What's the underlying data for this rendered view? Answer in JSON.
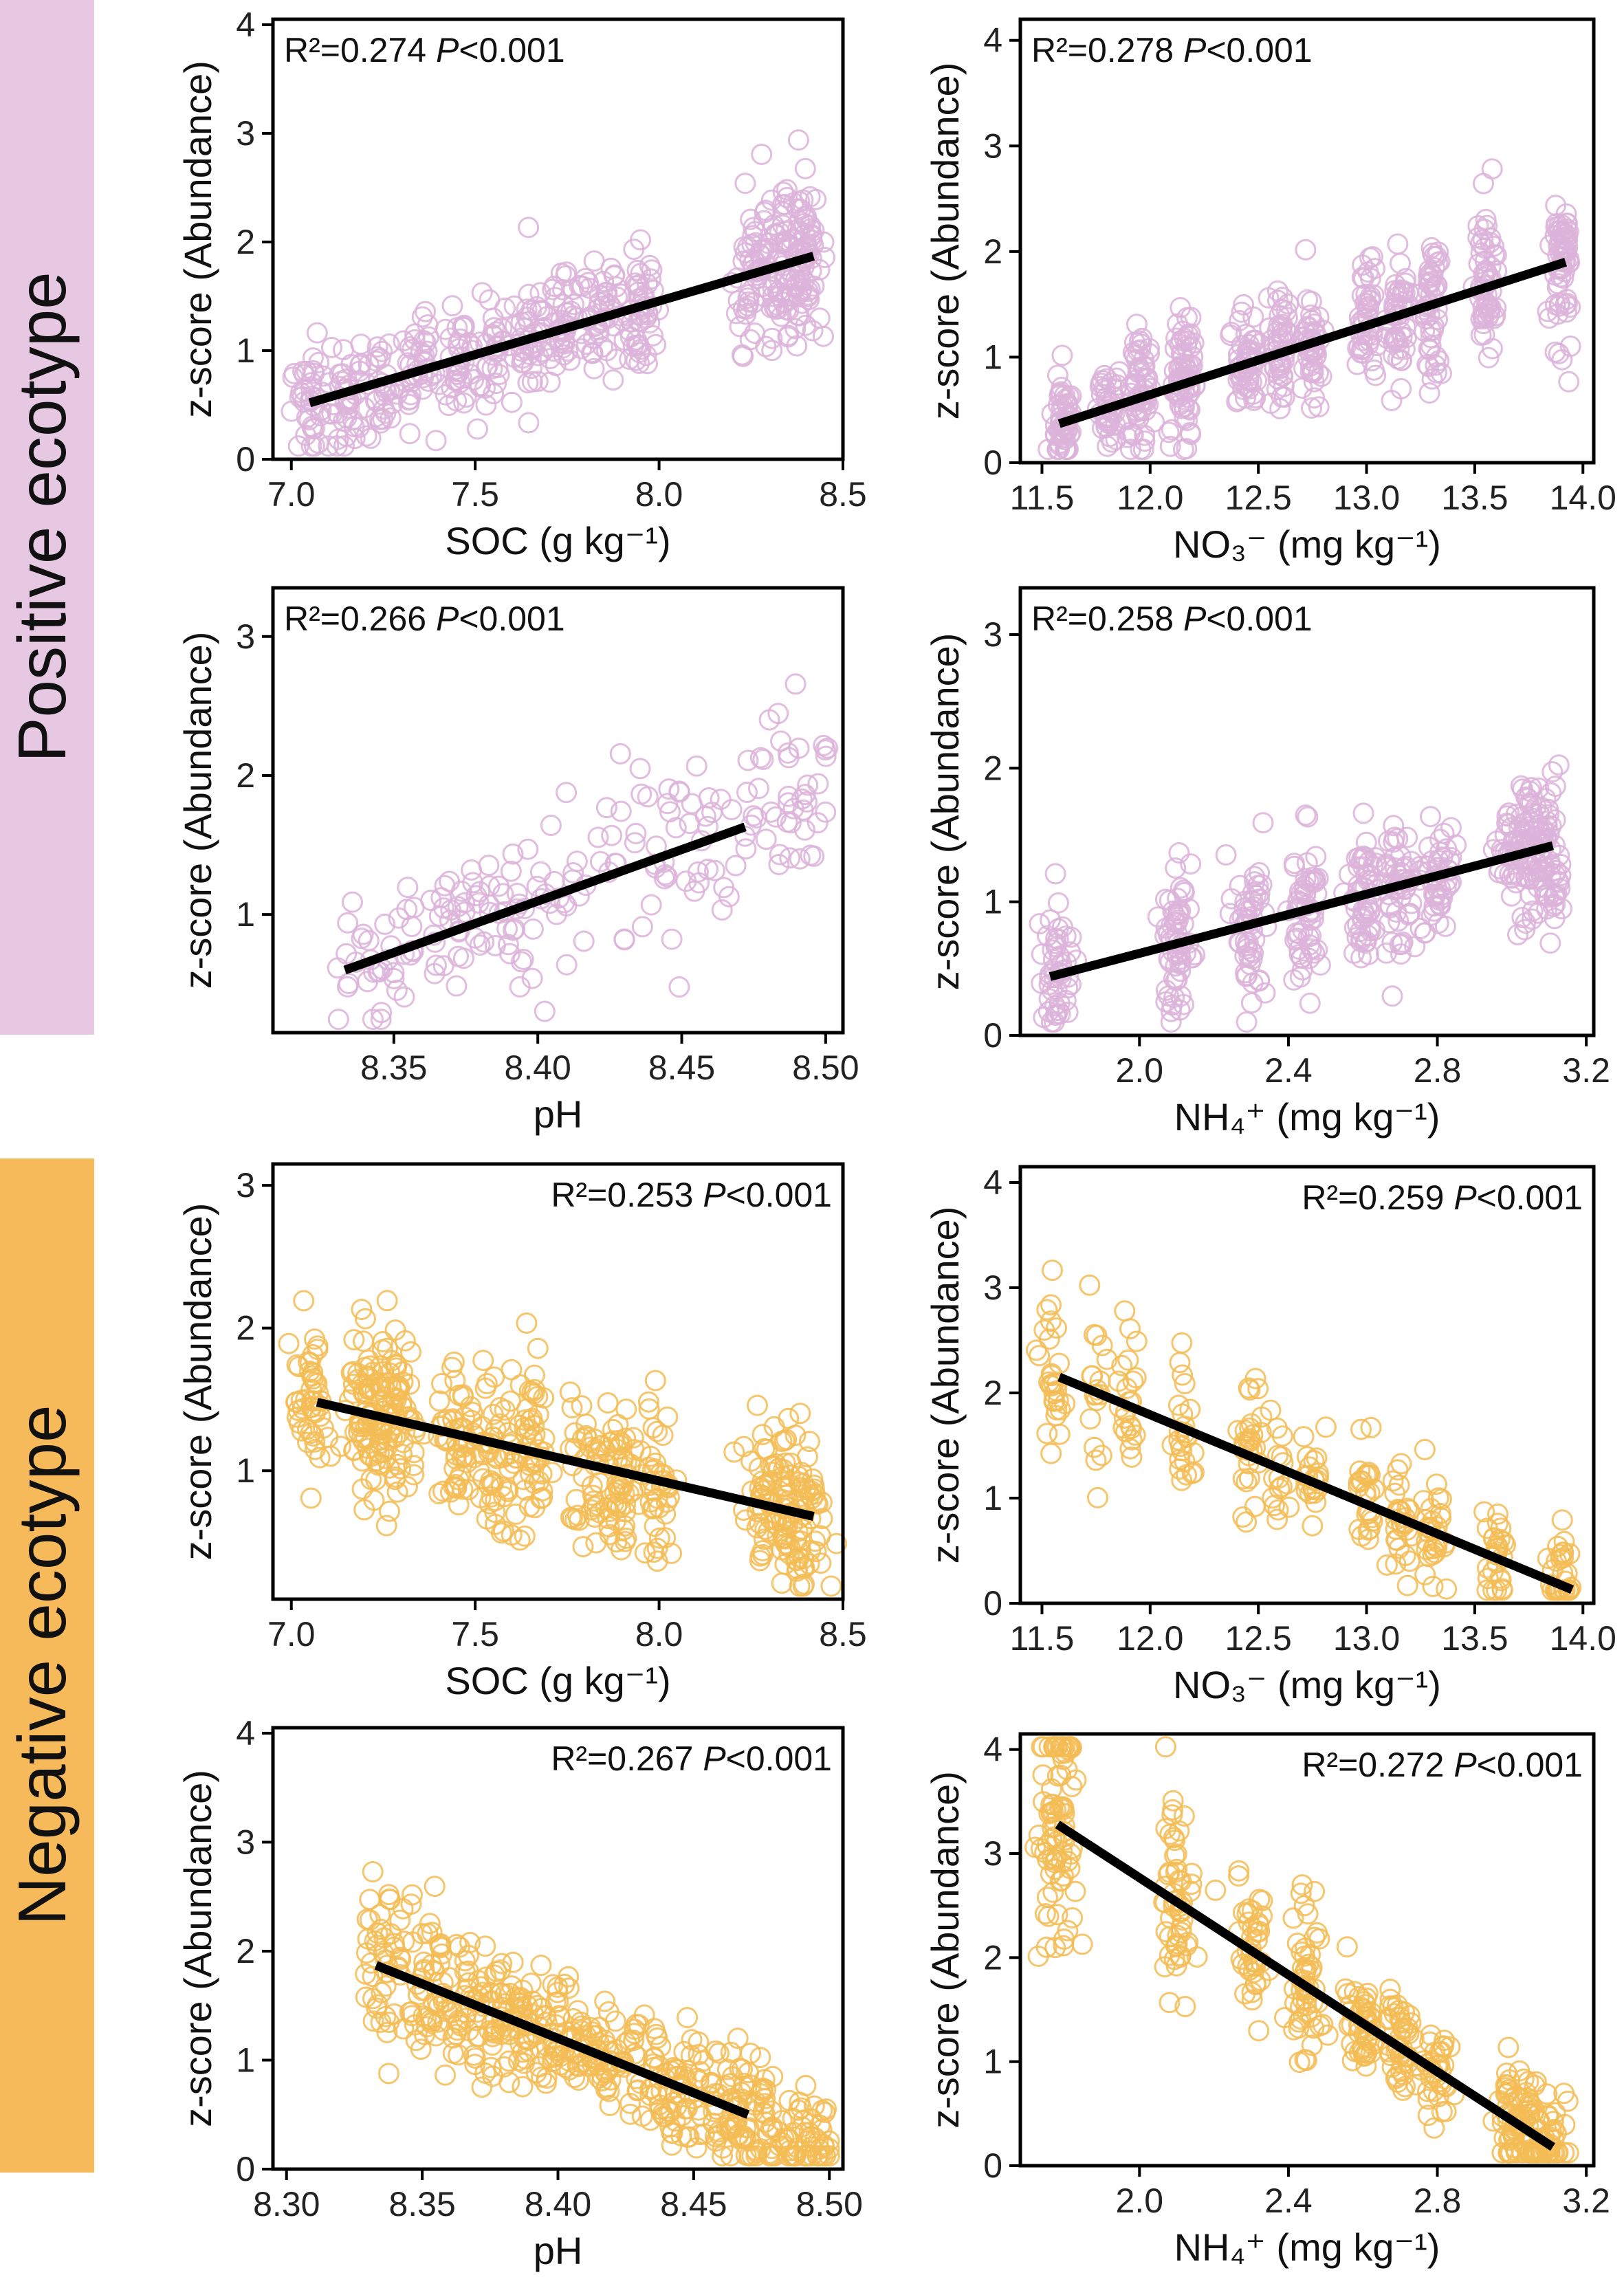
{
  "groups": {
    "positive": {
      "label": "Positive ecotype",
      "color": "#e6c8e2",
      "point_color": "#dcb3d9"
    },
    "negative": {
      "label": "Negative ecotype",
      "color": "#f7ba5a",
      "point_color": "#f3bc55"
    }
  },
  "chart_data": [
    {
      "type": "scatter",
      "group": "positive",
      "xlabel": "SOC (g kg⁻¹)",
      "ylabel": "z-score (Abundance)",
      "xlim": [
        6.95,
        8.5
      ],
      "ylim": [
        0,
        4.05
      ],
      "xticks": [
        7.0,
        7.5,
        8.0,
        8.5
      ],
      "xtick_labels": [
        "7.0",
        "7.5",
        "8.0",
        "8.5"
      ],
      "yticks": [
        0,
        1,
        2,
        3,
        4
      ],
      "ytick_labels": [
        "0",
        "1",
        "2",
        "3",
        "4"
      ],
      "annotation": {
        "r2": "R²=0.274",
        "p_label": "P",
        "p_value": "<0.001",
        "position": "top-left"
      },
      "fit_line": {
        "x": [
          7.05,
          8.42
        ],
        "y": [
          0.52,
          1.87
        ]
      },
      "points": {
        "n": 560,
        "clusters": [
          7.05,
          7.15,
          7.25,
          7.35,
          7.45,
          7.55,
          7.65,
          7.75,
          7.85,
          7.95,
          8.25,
          8.3,
          8.35,
          8.4
        ],
        "spread": 0.025
      }
    },
    {
      "type": "scatter",
      "group": "positive",
      "xlabel": "NO₃⁻ (mg kg⁻¹)",
      "ylabel": "z-score (Abundance)",
      "xlim": [
        11.4,
        14.05
      ],
      "ylim": [
        0,
        4.2
      ],
      "xticks": [
        11.5,
        12.0,
        12.5,
        13.0,
        13.5,
        14.0
      ],
      "xtick_labels": [
        "11.5",
        "12.0",
        "12.5",
        "13.0",
        "13.5",
        "14.0"
      ],
      "yticks": [
        0,
        1,
        2,
        3,
        4
      ],
      "ytick_labels": [
        "0",
        "1",
        "2",
        "3",
        "4"
      ],
      "annotation": {
        "r2": "R²=0.278",
        "p_label": "P",
        "p_value": "<0.001",
        "position": "top-left"
      },
      "fit_line": {
        "x": [
          11.58,
          13.92
        ],
        "y": [
          0.37,
          1.9
        ]
      },
      "points": {
        "n": 640,
        "clusters": [
          11.6,
          11.8,
          11.95,
          12.15,
          12.45,
          12.6,
          12.75,
          13.0,
          13.15,
          13.3,
          13.55,
          13.9
        ],
        "spread": 0.025
      }
    },
    {
      "type": "scatter",
      "group": "positive",
      "xlabel": "pH",
      "ylabel": "z-score (Abundance)",
      "xlim": [
        8.308,
        8.506
      ],
      "ylim": [
        0.15,
        3.35
      ],
      "xticks": [
        8.35,
        8.4,
        8.45,
        8.5
      ],
      "xtick_labels": [
        "8.35",
        "8.40",
        "8.45",
        "8.50"
      ],
      "yticks": [
        1,
        2,
        3
      ],
      "ytick_labels": [
        "1",
        "2",
        "3"
      ],
      "annotation": {
        "r2": "R²=0.266",
        "p_label": "P",
        "p_value": "<0.001",
        "position": "top-left"
      },
      "fit_line": {
        "x": [
          8.333,
          8.472
        ],
        "y": [
          0.6,
          1.63
        ]
      },
      "points": {
        "n": 210,
        "clusters": null,
        "spread": 0
      }
    },
    {
      "type": "scatter",
      "group": "positive",
      "xlabel": "NH₄⁺ (mg kg⁻¹)",
      "ylabel": "z-score (Abundance)",
      "xlim": [
        1.68,
        3.22
      ],
      "ylim": [
        0,
        3.35
      ],
      "xticks": [
        2.0,
        2.4,
        2.8,
        3.2
      ],
      "xtick_labels": [
        "2.0",
        "2.4",
        "2.8",
        "3.2"
      ],
      "yticks": [
        0,
        1,
        2,
        3
      ],
      "ytick_labels": [
        "0",
        "1",
        "2",
        "3"
      ],
      "annotation": {
        "r2": "R²=0.258",
        "p_label": "P",
        "p_value": "<0.001",
        "position": "top-left"
      },
      "fit_line": {
        "x": [
          1.76,
          3.11
        ],
        "y": [
          0.44,
          1.42
        ]
      },
      "points": {
        "n": 520,
        "clusters": [
          1.78,
          2.1,
          2.3,
          2.45,
          2.6,
          2.7,
          2.8,
          3.0,
          3.05,
          3.1
        ],
        "spread": 0.02
      }
    },
    {
      "type": "scatter",
      "group": "negative",
      "xlabel": "SOC (g kg⁻¹)",
      "ylabel": "z-score (Abundance)",
      "xlim": [
        6.95,
        8.5
      ],
      "ylim": [
        0.1,
        3.15
      ],
      "xticks": [
        7.0,
        7.5,
        8.0,
        8.5
      ],
      "xtick_labels": [
        "7.0",
        "7.5",
        "8.0",
        "8.5"
      ],
      "yticks": [
        1,
        2,
        3
      ],
      "ytick_labels": [
        "1",
        "2",
        "3"
      ],
      "annotation": {
        "r2": "R²=0.253",
        "p_label": "P",
        "p_value": "<0.001",
        "position": "top-right"
      },
      "fit_line": {
        "x": [
          7.07,
          8.42
        ],
        "y": [
          1.48,
          0.68
        ]
      },
      "points": {
        "n": 620,
        "clusters": [
          7.05,
          7.2,
          7.25,
          7.3,
          7.45,
          7.55,
          7.65,
          7.8,
          7.9,
          8.0,
          8.28,
          8.35,
          8.4
        ],
        "spread": 0.025
      }
    },
    {
      "type": "scatter",
      "group": "negative",
      "xlabel": "NO₃⁻ (mg kg⁻¹)",
      "ylabel": "z-score (Abundance)",
      "xlim": [
        11.4,
        14.05
      ],
      "ylim": [
        0,
        4.15
      ],
      "xticks": [
        11.5,
        12.0,
        12.5,
        13.0,
        13.5,
        14.0
      ],
      "xtick_labels": [
        "11.5",
        "12.0",
        "12.5",
        "13.0",
        "13.5",
        "14.0"
      ],
      "yticks": [
        0,
        1,
        2,
        3,
        4
      ],
      "ytick_labels": [
        "0",
        "1",
        "2",
        "3",
        "4"
      ],
      "annotation": {
        "r2": "R²=0.259",
        "p_label": "P",
        "p_value": "<0.001",
        "position": "top-right"
      },
      "fit_line": {
        "x": [
          11.58,
          13.95
        ],
        "y": [
          2.15,
          0.13
        ]
      },
      "points": {
        "n": 300,
        "clusters": [
          11.55,
          11.75,
          11.9,
          12.15,
          12.45,
          12.6,
          12.75,
          13.0,
          13.15,
          13.3,
          13.6,
          13.9
        ],
        "spread": 0.025
      }
    },
    {
      "type": "scatter",
      "group": "negative",
      "xlabel": "pH",
      "ylabel": "z-score (Abundance)",
      "xlim": [
        8.295,
        8.505
      ],
      "ylim": [
        0,
        4.05
      ],
      "xticks": [
        8.3,
        8.35,
        8.4,
        8.45,
        8.5
      ],
      "xtick_labels": [
        "8.30",
        "8.35",
        "8.40",
        "8.45",
        "8.50"
      ],
      "yticks": [
        0,
        1,
        2,
        3,
        4
      ],
      "ytick_labels": [
        "0",
        "1",
        "2",
        "3",
        "4"
      ],
      "annotation": {
        "r2": "R²=0.267",
        "p_label": "P",
        "p_value": "<0.001",
        "position": "top-right"
      },
      "fit_line": {
        "x": [
          8.333,
          8.47
        ],
        "y": [
          1.87,
          0.5
        ]
      },
      "points": {
        "n": 560,
        "clusters": null,
        "spread": 0
      }
    },
    {
      "type": "scatter",
      "group": "negative",
      "xlabel": "NH₄⁺ (mg kg⁻¹)",
      "ylabel": "z-score (Abundance)",
      "xlim": [
        1.68,
        3.22
      ],
      "ylim": [
        0,
        4.15
      ],
      "xticks": [
        2.0,
        2.4,
        2.8,
        3.2
      ],
      "xtick_labels": [
        "2.0",
        "2.4",
        "2.8",
        "3.2"
      ],
      "yticks": [
        0,
        1,
        2,
        3,
        4
      ],
      "ytick_labels": [
        "0",
        "1",
        "2",
        "3",
        "4"
      ],
      "annotation": {
        "r2": "R²=0.272",
        "p_label": "P",
        "p_value": "<0.001",
        "position": "top-right"
      },
      "fit_line": {
        "x": [
          1.78,
          3.11
        ],
        "y": [
          3.28,
          0.18
        ]
      },
      "points": {
        "n": 480,
        "clusters": [
          1.76,
          1.8,
          2.1,
          2.3,
          2.45,
          2.6,
          2.7,
          2.8,
          3.0,
          3.05,
          3.1
        ],
        "spread": 0.02
      }
    }
  ]
}
